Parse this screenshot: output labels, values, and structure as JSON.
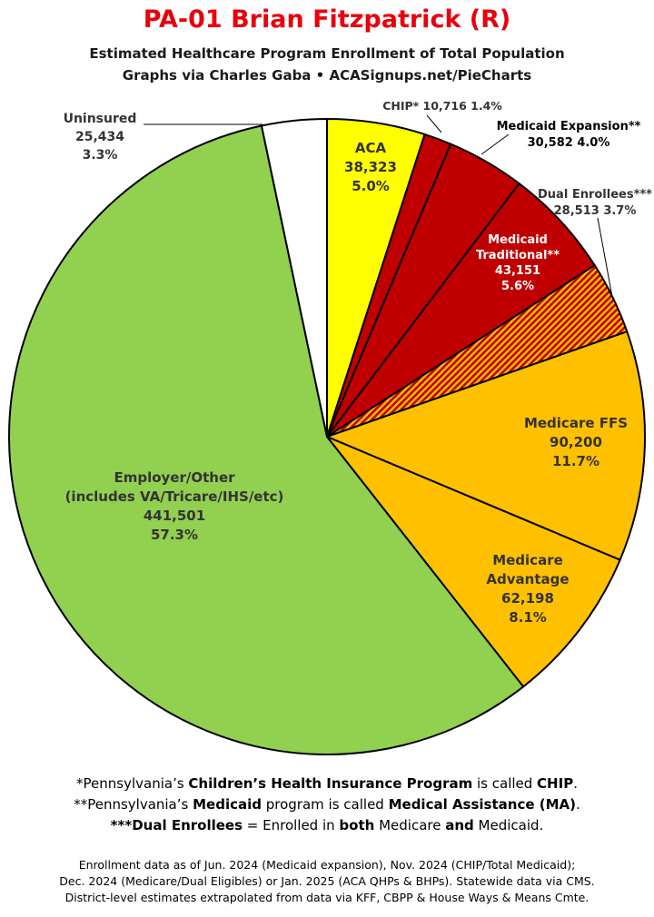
{
  "header": {
    "title": "PA-01 Brian Fitzpatrick (R)",
    "subtitle1": "Estimated Healthcare Program Enrollment of Total Population",
    "subtitle2": "Graphs via Charles Gaba  •  ACASignups.net/PieCharts"
  },
  "chart_data": {
    "type": "pie",
    "title": "PA-01 Brian Fitzpatrick (R)",
    "start_angle_deg": 0,
    "direction": "clockwise",
    "slices": [
      {
        "label": "ACA",
        "value": 38323,
        "value_label": "38,323",
        "percent": "5.0%",
        "color": "#ffff00",
        "pattern": "none"
      },
      {
        "label": "CHIP*",
        "value": 10716,
        "value_label": "10,716",
        "percent": "1.4%",
        "color": "#c00000",
        "pattern": "none"
      },
      {
        "label": "Medicaid Expansion**",
        "value": 30582,
        "value_label": "30,582",
        "percent": "4.0%",
        "color": "#c00000",
        "pattern": "none"
      },
      {
        "label": "Medicaid Traditional**",
        "value": 43151,
        "value_label": "43,151",
        "percent": "5.6%",
        "color": "#c00000",
        "pattern": "none"
      },
      {
        "label": "Dual Enrollees***",
        "value": 28513,
        "value_label": "28,513",
        "percent": "3.7%",
        "color": "#c00000",
        "pattern": "stripes"
      },
      {
        "label": "Medicare FFS",
        "value": 90200,
        "value_label": "90,200",
        "percent": "11.7%",
        "color": "#ffc000",
        "pattern": "none"
      },
      {
        "label": "Medicare Advantage",
        "value": 62198,
        "value_label": "62,198",
        "percent": "8.1%",
        "color": "#ffc000",
        "pattern": "none"
      },
      {
        "label": "Employer/Other (includes VA/Tricare/IHS/etc)",
        "value": 441501,
        "value_label": "441,501",
        "percent": "57.3%",
        "color": "#92d050",
        "pattern": "none"
      },
      {
        "label": "Uninsured",
        "value": 25434,
        "value_label": "25,434",
        "percent": "3.3%",
        "color": "#ffffff",
        "pattern": "none"
      }
    ]
  },
  "footnotes": {
    "line1": {
      "a": "*Pennsylvania’s ",
      "b": "Children’s Health Insurance Program",
      "c": " is called ",
      "d": "CHIP",
      "e": "."
    },
    "line2": {
      "a": "**Pennsylvania’s ",
      "b": "Medicaid",
      "c": " program is called ",
      "d": "Medical Assistance (MA)",
      "e": "."
    },
    "line3": {
      "a": "***Dual Enrollees",
      "b": " = Enrolled in ",
      "c": "both",
      "d": " Medicare ",
      "e": "and",
      "f": " Medicaid."
    }
  },
  "sources": {
    "line1": "Enrollment data as of Jun. 2024 (Medicaid expansion), Nov. 2024 (CHIP/Total Medicaid);",
    "line2": "Dec. 2024 (Medicare/Dual Eligibles) or Jan. 2025 (ACA QHPs & BHPs). Statewide data via CMS.",
    "line3": "District-level estimates extrapolated from data via KFF, CBPP & House Ways & Means Cmte."
  }
}
